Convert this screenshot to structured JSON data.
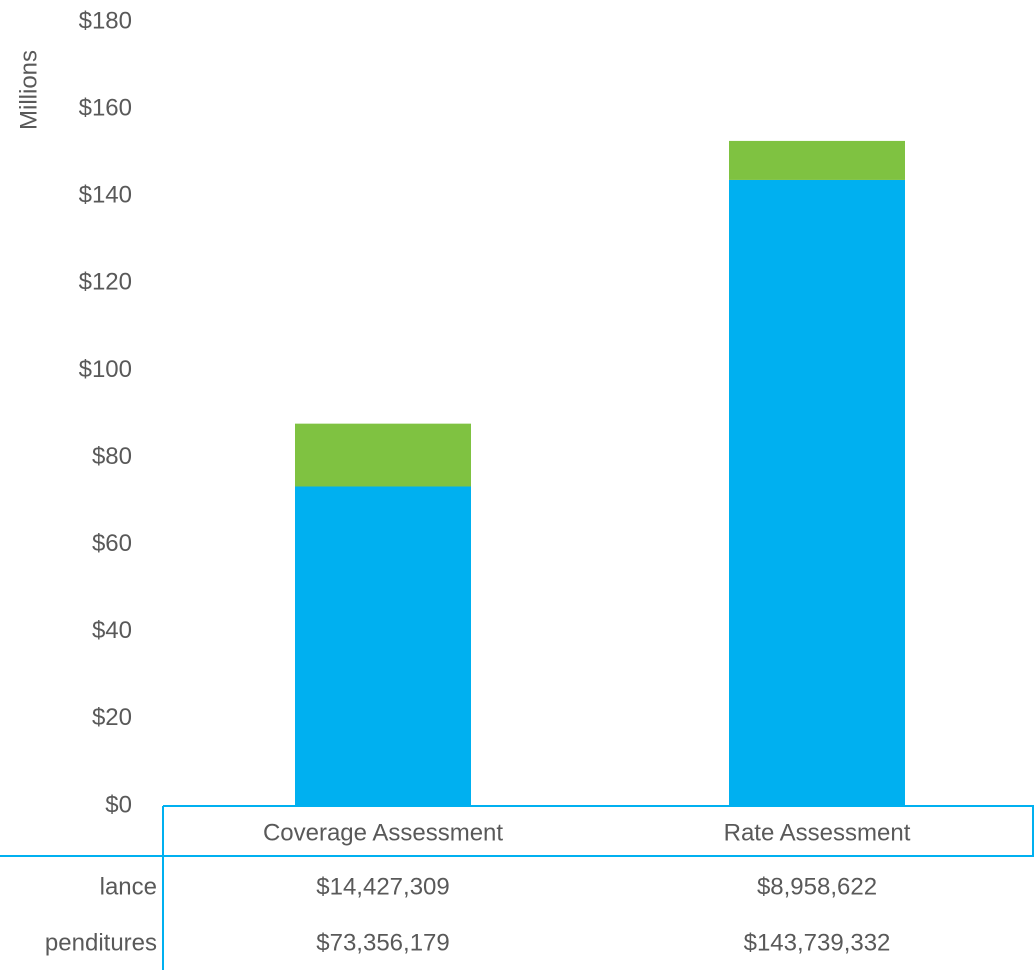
{
  "chart_data": {
    "type": "stacked_bar",
    "y_axis_label": "Millions",
    "categories": [
      "Coverage Assessment",
      "Rate Assessment"
    ],
    "series": [
      {
        "name": "penditures",
        "color": "#00b0f0",
        "values": [
          73.356179,
          143.739332
        ],
        "value_labels": [
          "$73,356,179",
          "$143,739,332"
        ]
      },
      {
        "name": "lance",
        "color": "#7fc241",
        "values": [
          14.427309,
          8.958622
        ],
        "value_labels": [
          "$14,427,309",
          "$8,958,622"
        ]
      }
    ],
    "ylim": [
      0,
      180
    ],
    "yticks": [
      {
        "value": 0,
        "label": "$0"
      },
      {
        "value": 20,
        "label": "$20"
      },
      {
        "value": 40,
        "label": "$40"
      },
      {
        "value": 60,
        "label": "$60"
      },
      {
        "value": 80,
        "label": "$80"
      },
      {
        "value": 100,
        "label": "$100"
      },
      {
        "value": 120,
        "label": "$120"
      },
      {
        "value": 140,
        "label": "$140"
      },
      {
        "value": 160,
        "label": "$160"
      },
      {
        "value": 180,
        "label": "$180"
      }
    ],
    "data_table": true
  }
}
